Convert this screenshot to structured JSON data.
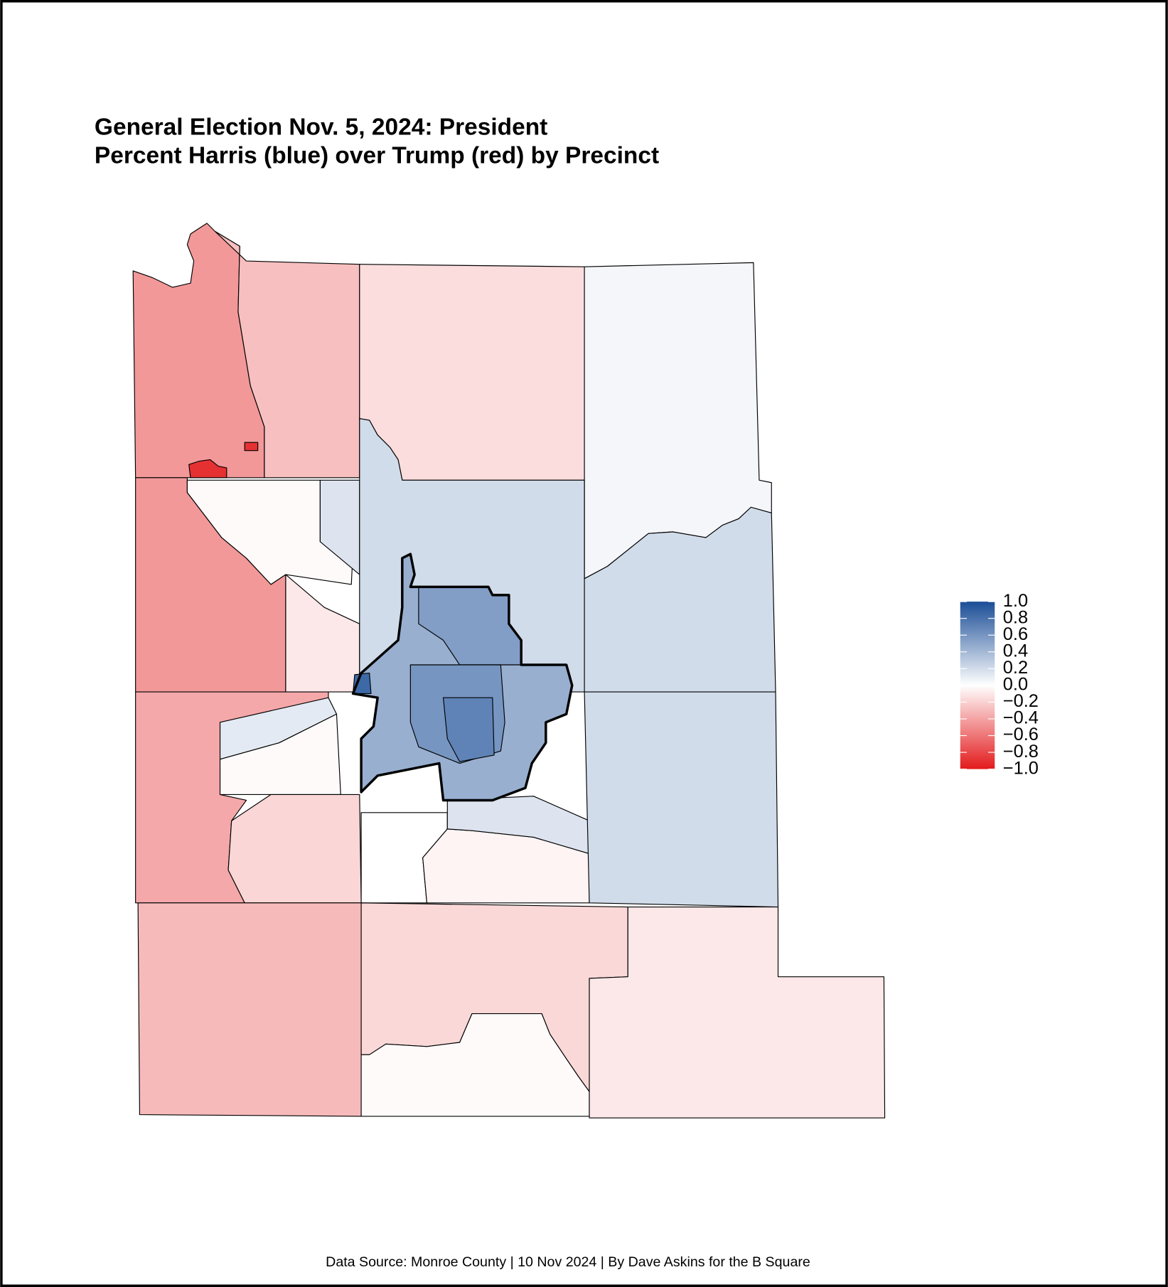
{
  "chart_data": {
    "type": "choropleth",
    "title": "General Election Nov. 5, 2024: President",
    "subtitle": "Percent Harris (blue) over Trump (red) by Precinct",
    "caption": "Data Source: Monroe County | 10 Nov 2024 | By Dave Askins for the B Square",
    "colorscale": [
      "#e31a1c",
      "#ffffff",
      "#1b4e97"
    ],
    "ylim": [
      -1,
      1
    ],
    "yticks": [
      {
        "value": -1,
        "label": "−1.0"
      },
      {
        "value": -0.8,
        "label": "−0.8"
      },
      {
        "value": -0.6,
        "label": "−0.6"
      },
      {
        "value": -0.4,
        "label": "−0.4"
      },
      {
        "value": -0.2,
        "label": "−0.2"
      },
      {
        "value": 0,
        "label": "0.0"
      },
      0.2,
      0.4,
      0.6,
      0.8,
      {
        "value": 1,
        "label": "1.0"
      }
    ],
    "values": [
      -0.45,
      -0.28,
      -0.15,
      0.05,
      -0.45,
      -0.02,
      -0.1,
      0.15,
      0.2,
      0.2,
      -0.38,
      0.12,
      -0.02,
      -0.18,
      0.0,
      -0.05,
      0.15,
      0.2,
      -0.3,
      -0.17,
      -0.02,
      -0.1,
      0.45,
      0.55,
      0.6,
      0.7,
      0.85,
      -0.9,
      -0.9
    ]
  }
}
